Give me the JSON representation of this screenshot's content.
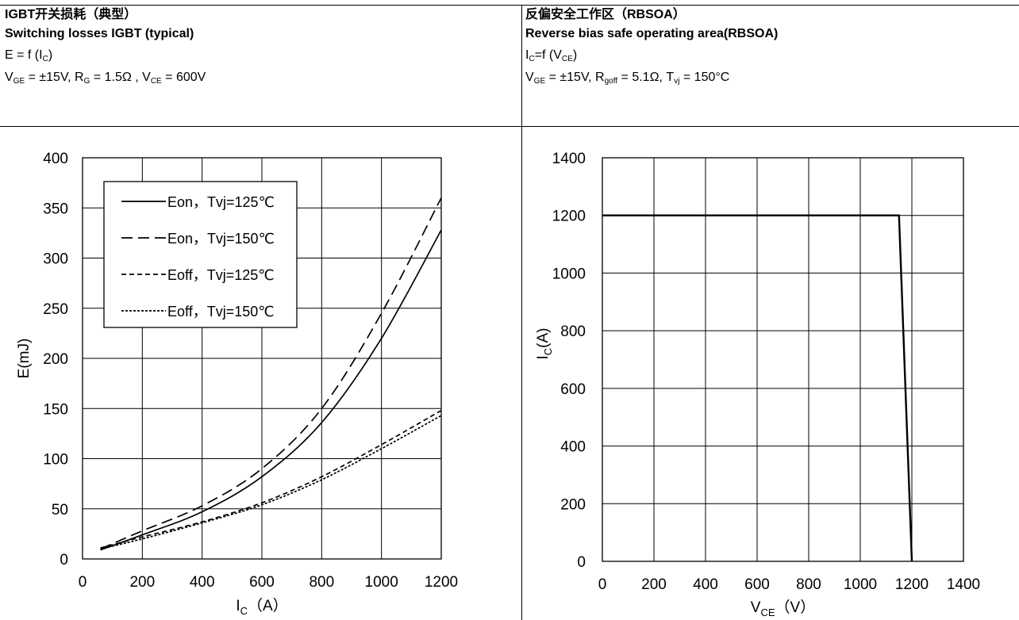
{
  "left_header": {
    "title_cn": "IGBT开关损耗（典型）",
    "title_en": "Switching losses IGBT (typical)",
    "formula": {
      "a": "E = f (I",
      "sub": "C",
      "b": ")"
    },
    "conditions": {
      "p1": "V",
      "s1": "GE",
      "p2": " = ±15V, R",
      "s2": "G",
      "p3": " = 1.5Ω , V",
      "s3": "CE",
      "p4": " = 600V"
    }
  },
  "right_header": {
    "title_cn": "反偏安全工作区（RBSOA）",
    "title_en": "Reverse bias safe operating area(RBSOA)",
    "formula": {
      "a": "I",
      "sub1": "C",
      "b": "=f (V",
      "sub2": "CE",
      "c": ")"
    },
    "conditions": {
      "p1": "V",
      "s1": "GE",
      "p2": " = ±15V, R",
      "s2": "goff",
      "p3": " = 5.1Ω, T",
      "s3": "vj",
      "p4": " = 150°C"
    }
  },
  "chart_data": [
    {
      "type": "line",
      "ylabel": "E(mJ)",
      "xlabel": {
        "main": "I",
        "sub": "C",
        "unit": "（A）"
      },
      "xlim": [
        0,
        1200
      ],
      "ylim": [
        0,
        400
      ],
      "x_ticks": [
        0,
        200,
        400,
        600,
        800,
        1000,
        1200
      ],
      "y_ticks": [
        0,
        50,
        100,
        150,
        200,
        250,
        300,
        350,
        400
      ],
      "grid": true,
      "legend_position": "top-left",
      "series": [
        {
          "name": "Eon，Tvj=125℃",
          "style": "solid",
          "x": [
            60,
            200,
            400,
            600,
            800,
            1000,
            1200
          ],
          "y": [
            9,
            24,
            47,
            82,
            136,
            220,
            328
          ]
        },
        {
          "name": "Eon，Tvj=150℃",
          "style": "long-dash",
          "x": [
            60,
            200,
            400,
            600,
            800,
            1000,
            1200
          ],
          "y": [
            10,
            28,
            53,
            90,
            150,
            245,
            360
          ]
        },
        {
          "name": "Eoff，Tvj=125℃",
          "style": "short-dash",
          "x": [
            60,
            200,
            400,
            600,
            800,
            1000,
            1200
          ],
          "y": [
            11,
            22,
            37,
            56,
            82,
            114,
            148
          ]
        },
        {
          "name": "Eoff，Tvj=150℃",
          "style": "dotted-dash",
          "x": [
            60,
            200,
            400,
            600,
            800,
            1000,
            1200
          ],
          "y": [
            10,
            20,
            36,
            54,
            79,
            110,
            143
          ]
        }
      ]
    },
    {
      "type": "line",
      "ylabel": {
        "main": "I",
        "sub": "C",
        "unit": "(A)"
      },
      "xlabel": {
        "main": "V",
        "sub": "CE",
        "unit": "（V）"
      },
      "xlim": [
        0,
        1400
      ],
      "ylim": [
        0,
        1400
      ],
      "x_ticks": [
        0,
        200,
        400,
        600,
        800,
        1000,
        1200,
        1400
      ],
      "y_ticks": [
        0,
        200,
        400,
        600,
        800,
        1000,
        1200,
        1400
      ],
      "grid": true,
      "series": [
        {
          "style": "solid",
          "x": [
            0,
            1150,
            1200
          ],
          "y": [
            1200,
            1200,
            0
          ]
        }
      ]
    }
  ]
}
